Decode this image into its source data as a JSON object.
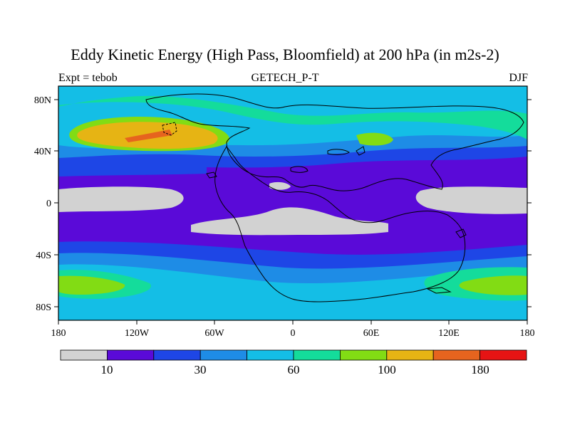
{
  "title": "Eddy Kinetic Energy (High Pass, Bloomfield) at 200 hPa (in m2s-2)",
  "subtitle_left": "Expt = tebob",
  "subtitle_center": "GETECH_P-T",
  "subtitle_right": "DJF",
  "map": {
    "lat_labels": [
      "80N",
      "40N",
      "0",
      "40S",
      "80S"
    ],
    "lon_labels": [
      "180",
      "120W",
      "60W",
      "0",
      "60E",
      "120E",
      "180"
    ]
  },
  "colorbar": {
    "colors": [
      "#d2d2d2",
      "#5a0ad8",
      "#1e46e6",
      "#1e8ce6",
      "#14bee6",
      "#14dc9b",
      "#82dc14",
      "#e6b414",
      "#e6641e",
      "#e61414"
    ],
    "labels": [
      "10",
      "30",
      "60",
      "100",
      "180"
    ]
  },
  "chart_data": {
    "type": "heatmap",
    "title": "Eddy Kinetic Energy (High Pass, Bloomfield) at 200 hPa (in m2s-2)",
    "variable": "Eddy Kinetic Energy",
    "units": "m2s-2",
    "level": "200 hPa",
    "experiment": "tebob",
    "source": "GETECH_P-T",
    "season": "DJF",
    "xrange": [
      -180,
      180
    ],
    "yrange": [
      -90,
      90
    ],
    "contour_levels_labeled": [
      10,
      30,
      60,
      100,
      180
    ]
  }
}
